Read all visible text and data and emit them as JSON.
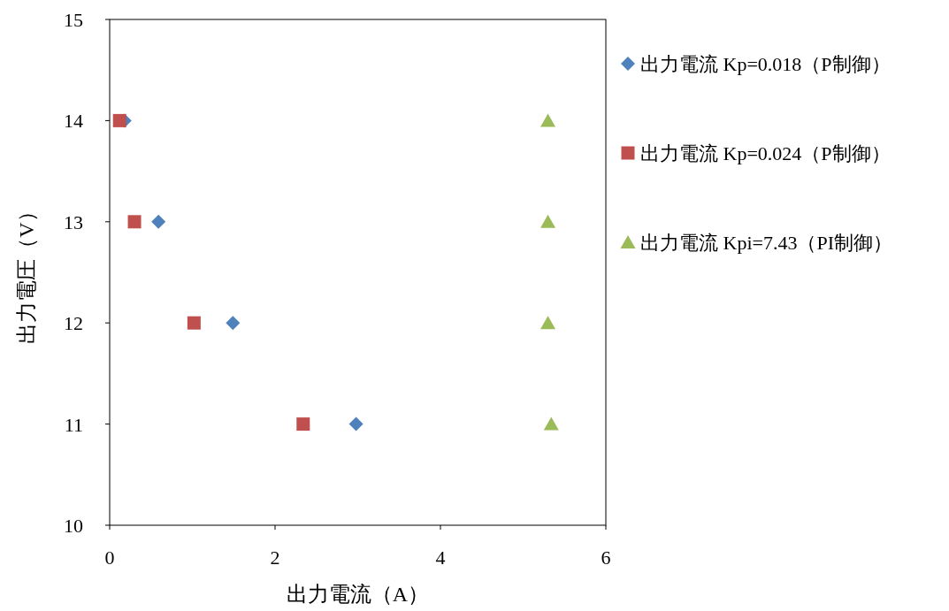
{
  "chart_data": {
    "type": "scatter",
    "xlabel": "出力電流（A）",
    "ylabel": "出力電圧（V）",
    "xlim": [
      0,
      6
    ],
    "xticks": [
      0,
      2,
      4,
      6
    ],
    "ylim": [
      10,
      15
    ],
    "yticks": [
      10,
      11,
      12,
      13,
      14,
      15
    ],
    "grid": false,
    "legend": "right",
    "series": [
      {
        "name": "出力電流 Kp=0.018（P制御）",
        "color": "#4f81bd",
        "marker": "diamond",
        "x": [
          0.18,
          0.59,
          1.49,
          2.98
        ],
        "values": [
          14,
          13,
          12,
          11
        ]
      },
      {
        "name": "出力電流 Kp=0.024（P制御）",
        "color": "#c0504d",
        "marker": "square",
        "x": [
          0.12,
          0.3,
          1.02,
          2.34
        ],
        "values": [
          14,
          13,
          12,
          11
        ]
      },
      {
        "name": "出力電流 Kpi=7.43（PI制御）",
        "color": "#9bbb59",
        "marker": "triangle",
        "x": [
          5.3,
          5.3,
          5.3,
          5.34
        ],
        "values": [
          14,
          13,
          12,
          11
        ]
      }
    ]
  }
}
